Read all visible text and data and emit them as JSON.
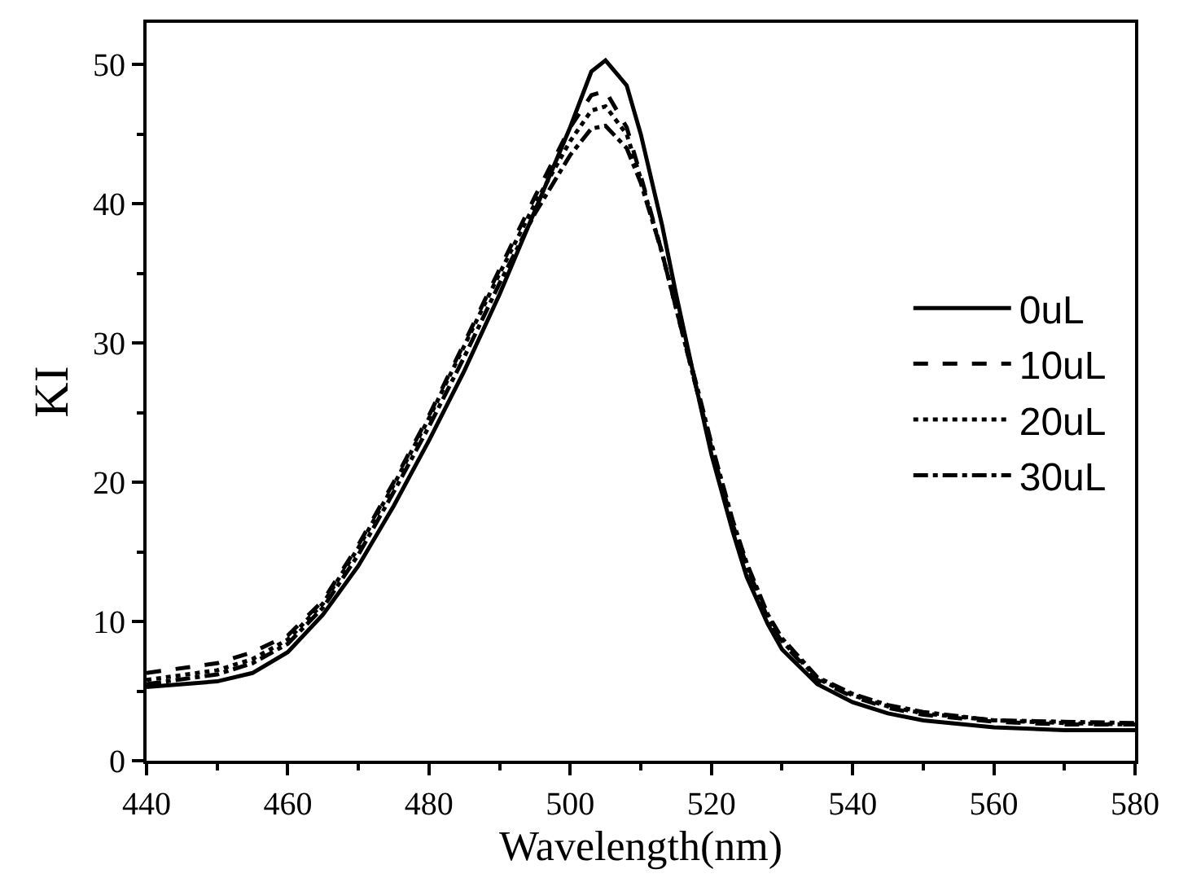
{
  "chart_data": {
    "type": "line",
    "xlabel": "Wavelength(nm)",
    "ylabel": "KI",
    "xlim": [
      440,
      580
    ],
    "xticks": [
      440,
      460,
      480,
      500,
      520,
      540,
      560,
      580
    ],
    "ylim": [
      0,
      53
    ],
    "yticks": [
      0,
      10,
      20,
      30,
      40,
      50
    ],
    "legend": "right",
    "marker": "none",
    "x": [
      440,
      450,
      455,
      460,
      465,
      470,
      475,
      480,
      485,
      490,
      495,
      500,
      503,
      505,
      508,
      510,
      513,
      515,
      518,
      520,
      523,
      525,
      528,
      530,
      535,
      540,
      545,
      550,
      560,
      570,
      580
    ],
    "series": [
      {
        "name": "0uL",
        "color": "#000000",
        "line_style": "solid",
        "values": [
          5.3,
          5.7,
          6.3,
          7.8,
          10.5,
          14.0,
          18.3,
          23.0,
          28.0,
          33.5,
          39.5,
          45.5,
          49.5,
          50.3,
          48.5,
          45.0,
          38.5,
          33.5,
          26.5,
          22.0,
          16.5,
          13.2,
          9.8,
          8.0,
          5.5,
          4.2,
          3.4,
          2.9,
          2.4,
          2.2,
          2.2
        ]
      },
      {
        "name": "10uL",
        "color": "#000000",
        "line_style": "dashed",
        "values": [
          6.3,
          7.0,
          7.8,
          9.0,
          11.5,
          15.5,
          20.0,
          24.8,
          30.0,
          35.3,
          40.5,
          45.5,
          47.8,
          48.1,
          45.5,
          42.0,
          36.5,
          32.5,
          26.5,
          22.5,
          17.0,
          14.0,
          10.2,
          8.5,
          5.8,
          4.6,
          3.8,
          3.3,
          2.8,
          2.6,
          2.6
        ]
      },
      {
        "name": "20uL",
        "color": "#000000",
        "line_style": "dotted",
        "values": [
          5.8,
          6.5,
          7.3,
          8.7,
          11.3,
          15.3,
          19.8,
          24.6,
          29.8,
          35.0,
          40.0,
          44.5,
          46.7,
          47.0,
          45.0,
          41.8,
          36.5,
          32.5,
          26.5,
          22.5,
          17.0,
          14.0,
          10.3,
          8.6,
          5.9,
          4.7,
          3.9,
          3.4,
          2.9,
          2.7,
          2.6
        ]
      },
      {
        "name": "30uL",
        "color": "#000000",
        "line_style": "dashdot",
        "values": [
          5.5,
          6.2,
          7.0,
          8.4,
          11.0,
          14.8,
          19.3,
          24.0,
          29.0,
          34.3,
          39.3,
          43.5,
          45.4,
          45.6,
          44.0,
          41.5,
          36.5,
          32.5,
          26.8,
          22.8,
          17.3,
          14.2,
          10.5,
          8.8,
          6.0,
          4.8,
          4.0,
          3.5,
          2.9,
          2.8,
          2.7
        ]
      }
    ]
  }
}
